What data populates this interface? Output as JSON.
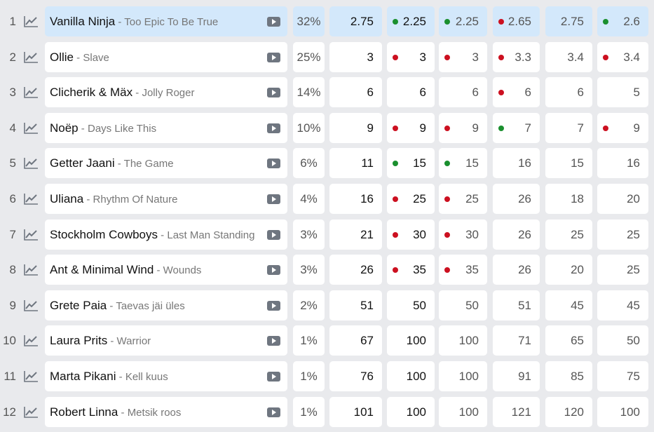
{
  "colors": {
    "green": "#1a8f2e",
    "red": "#cc1020",
    "highlight": "#d3e8fb"
  },
  "rows": [
    {
      "rank": "1",
      "artist": "Vanilla Ninja",
      "song": "Too Epic To Be True",
      "percent": "32%",
      "values": [
        [
          "2.75",
          ""
        ],
        [
          "2.25",
          "green"
        ],
        [
          "2.25",
          "green"
        ],
        [
          "2.65",
          "red"
        ],
        [
          "2.75",
          ""
        ],
        [
          "2.6",
          "green"
        ]
      ]
    },
    {
      "rank": "2",
      "artist": "Ollie",
      "song": "Slave",
      "percent": "25%",
      "values": [
        [
          "3",
          ""
        ],
        [
          "3",
          "red"
        ],
        [
          "3",
          "red"
        ],
        [
          "3.3",
          "red"
        ],
        [
          "3.4",
          ""
        ],
        [
          "3.4",
          "red"
        ]
      ]
    },
    {
      "rank": "3",
      "artist": "Clicherik & Mäx",
      "song": "Jolly Roger",
      "percent": "14%",
      "values": [
        [
          "6",
          ""
        ],
        [
          "6",
          ""
        ],
        [
          "6",
          ""
        ],
        [
          "6",
          "red"
        ],
        [
          "6",
          ""
        ],
        [
          "5",
          ""
        ]
      ]
    },
    {
      "rank": "4",
      "artist": "Noëp",
      "song": "Days Like This",
      "percent": "10%",
      "values": [
        [
          "9",
          ""
        ],
        [
          "9",
          "red"
        ],
        [
          "9",
          "red"
        ],
        [
          "7",
          "green"
        ],
        [
          "7",
          ""
        ],
        [
          "9",
          "red"
        ]
      ]
    },
    {
      "rank": "5",
      "artist": "Getter Jaani",
      "song": "The Game",
      "percent": "6%",
      "values": [
        [
          "11",
          ""
        ],
        [
          "15",
          "green"
        ],
        [
          "15",
          "green"
        ],
        [
          "16",
          ""
        ],
        [
          "15",
          ""
        ],
        [
          "16",
          ""
        ]
      ]
    },
    {
      "rank": "6",
      "artist": "Uliana",
      "song": "Rhythm Of Nature",
      "percent": "4%",
      "values": [
        [
          "16",
          ""
        ],
        [
          "25",
          "red"
        ],
        [
          "25",
          "red"
        ],
        [
          "26",
          ""
        ],
        [
          "18",
          ""
        ],
        [
          "20",
          ""
        ]
      ]
    },
    {
      "rank": "7",
      "artist": "Stockholm Cowboys",
      "song": "Last Man Standing",
      "percent": "3%",
      "values": [
        [
          "21",
          ""
        ],
        [
          "30",
          "red"
        ],
        [
          "30",
          "red"
        ],
        [
          "26",
          ""
        ],
        [
          "25",
          ""
        ],
        [
          "25",
          ""
        ]
      ]
    },
    {
      "rank": "8",
      "artist": "Ant & Minimal Wind",
      "song": "Wounds",
      "percent": "3%",
      "values": [
        [
          "26",
          ""
        ],
        [
          "35",
          "red"
        ],
        [
          "35",
          "red"
        ],
        [
          "26",
          ""
        ],
        [
          "20",
          ""
        ],
        [
          "25",
          ""
        ]
      ]
    },
    {
      "rank": "9",
      "artist": "Grete Paia",
      "song": "Taevas jäi üles",
      "percent": "2%",
      "values": [
        [
          "51",
          ""
        ],
        [
          "50",
          ""
        ],
        [
          "50",
          ""
        ],
        [
          "51",
          ""
        ],
        [
          "45",
          ""
        ],
        [
          "45",
          ""
        ]
      ]
    },
    {
      "rank": "10",
      "artist": "Laura Prits",
      "song": "Warrior",
      "percent": "1%",
      "values": [
        [
          "67",
          ""
        ],
        [
          "100",
          ""
        ],
        [
          "100",
          ""
        ],
        [
          "71",
          ""
        ],
        [
          "65",
          ""
        ],
        [
          "50",
          ""
        ]
      ]
    },
    {
      "rank": "11",
      "artist": "Marta Pikani",
      "song": "Kell kuus",
      "percent": "1%",
      "values": [
        [
          "76",
          ""
        ],
        [
          "100",
          ""
        ],
        [
          "100",
          ""
        ],
        [
          "91",
          ""
        ],
        [
          "85",
          ""
        ],
        [
          "75",
          ""
        ]
      ]
    },
    {
      "rank": "12",
      "artist": "Robert Linna",
      "song": "Metsik roos",
      "percent": "1%",
      "values": [
        [
          "101",
          ""
        ],
        [
          "100",
          ""
        ],
        [
          "100",
          ""
        ],
        [
          "121",
          ""
        ],
        [
          "120",
          ""
        ],
        [
          "100",
          ""
        ]
      ]
    }
  ]
}
